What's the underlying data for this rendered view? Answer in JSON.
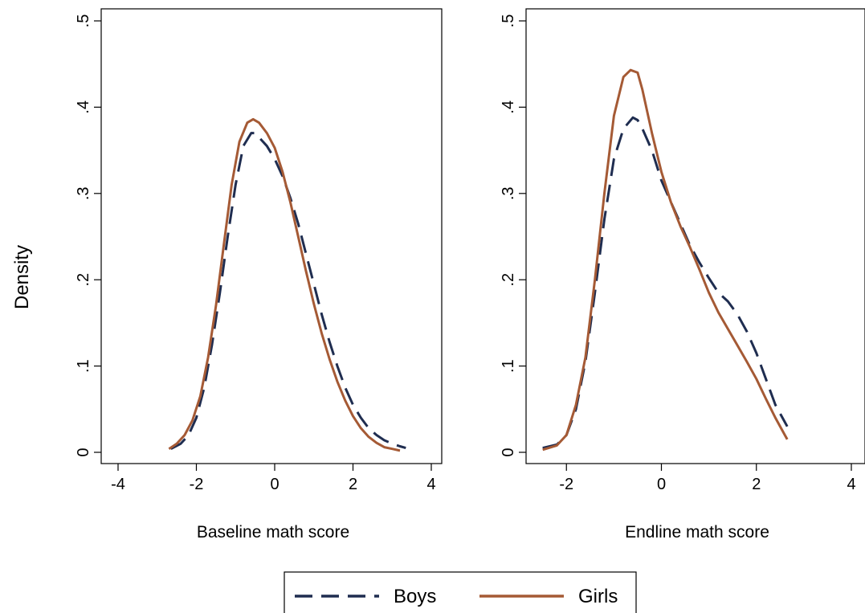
{
  "figure": {
    "ylabel": "Density",
    "legend": {
      "position": "bottom-center",
      "entries": [
        {
          "label": "Boys",
          "color": "#1f2d50",
          "dash": "dashed"
        },
        {
          "label": "Girls",
          "color": "#a55a35",
          "dash": "solid"
        }
      ]
    }
  },
  "chart_data": [
    {
      "type": "line",
      "title": "",
      "xlabel": "Baseline math score",
      "ylabel": "Density",
      "xlim": [
        -4,
        4
      ],
      "ylim": [
        0,
        0.5
      ],
      "xticks": [
        -4,
        -2,
        0,
        2,
        4
      ],
      "yticks": [
        0,
        0.1,
        0.2,
        0.3,
        0.4,
        0.5
      ],
      "ytick_labels": [
        "0",
        ".1",
        ".2",
        ".3",
        ".4",
        ".5"
      ],
      "grid": false,
      "series": [
        {
          "name": "Boys",
          "color": "#1f2d50",
          "dash": "dashed",
          "x": [
            -2.65,
            -2.4,
            -2.2,
            -2.0,
            -1.8,
            -1.6,
            -1.4,
            -1.2,
            -1.0,
            -0.8,
            -0.6,
            -0.5,
            -0.4,
            -0.2,
            0.0,
            0.2,
            0.4,
            0.6,
            0.8,
            1.0,
            1.2,
            1.4,
            1.6,
            1.8,
            2.0,
            2.2,
            2.4,
            2.6,
            2.8,
            3.0,
            3.2,
            3.35
          ],
          "y": [
            0.004,
            0.01,
            0.02,
            0.04,
            0.075,
            0.125,
            0.185,
            0.25,
            0.31,
            0.355,
            0.37,
            0.37,
            0.365,
            0.355,
            0.34,
            0.32,
            0.295,
            0.265,
            0.23,
            0.195,
            0.16,
            0.128,
            0.1,
            0.075,
            0.055,
            0.04,
            0.028,
            0.02,
            0.014,
            0.01,
            0.007,
            0.005
          ]
        },
        {
          "name": "Girls",
          "color": "#a55a35",
          "dash": "solid",
          "x": [
            -2.7,
            -2.5,
            -2.3,
            -2.1,
            -1.9,
            -1.7,
            -1.5,
            -1.3,
            -1.1,
            -0.9,
            -0.7,
            -0.55,
            -0.4,
            -0.2,
            0.0,
            0.2,
            0.4,
            0.6,
            0.8,
            1.0,
            1.2,
            1.4,
            1.6,
            1.8,
            2.0,
            2.2,
            2.4,
            2.6,
            2.8,
            3.0,
            3.2
          ],
          "y": [
            0.004,
            0.01,
            0.02,
            0.037,
            0.065,
            0.11,
            0.17,
            0.24,
            0.31,
            0.36,
            0.382,
            0.386,
            0.382,
            0.37,
            0.353,
            0.325,
            0.29,
            0.25,
            0.21,
            0.172,
            0.138,
            0.108,
            0.082,
            0.06,
            0.042,
            0.028,
            0.018,
            0.011,
            0.006,
            0.004,
            0.002
          ]
        }
      ]
    },
    {
      "type": "line",
      "title": "",
      "xlabel": "Endline math score",
      "ylabel": "Density",
      "xlim": [
        -4,
        4
      ],
      "ylim": [
        0,
        0.5
      ],
      "xticks": [
        -2,
        0,
        2,
        4
      ],
      "yticks": [
        0,
        0.1,
        0.2,
        0.3,
        0.4,
        0.5
      ],
      "ytick_labels": [
        "0",
        ".1",
        ".2",
        ".3",
        ".4",
        ".5"
      ],
      "grid": false,
      "series": [
        {
          "name": "Boys",
          "color": "#1f2d50",
          "dash": "dashed",
          "x": [
            -2.5,
            -2.2,
            -2.0,
            -1.8,
            -1.6,
            -1.4,
            -1.2,
            -1.0,
            -0.8,
            -0.6,
            -0.5,
            -0.4,
            -0.2,
            0.0,
            0.2,
            0.4,
            0.6,
            0.8,
            1.0,
            1.2,
            1.4,
            1.6,
            1.8,
            2.0,
            2.2,
            2.4,
            2.6,
            2.65
          ],
          "y": [
            0.005,
            0.009,
            0.02,
            0.05,
            0.105,
            0.185,
            0.27,
            0.34,
            0.375,
            0.388,
            0.385,
            0.375,
            0.35,
            0.315,
            0.29,
            0.265,
            0.24,
            0.22,
            0.202,
            0.185,
            0.175,
            0.16,
            0.14,
            0.115,
            0.085,
            0.055,
            0.035,
            0.03
          ]
        },
        {
          "name": "Girls",
          "color": "#a55a35",
          "dash": "solid",
          "x": [
            -2.5,
            -2.2,
            -2.0,
            -1.8,
            -1.6,
            -1.4,
            -1.2,
            -1.0,
            -0.8,
            -0.65,
            -0.5,
            -0.4,
            -0.2,
            0.0,
            0.2,
            0.4,
            0.6,
            0.8,
            1.0,
            1.2,
            1.4,
            1.6,
            1.8,
            2.0,
            2.2,
            2.4,
            2.6,
            2.65
          ],
          "y": [
            0.003,
            0.008,
            0.02,
            0.055,
            0.11,
            0.2,
            0.3,
            0.39,
            0.435,
            0.443,
            0.44,
            0.42,
            0.37,
            0.325,
            0.29,
            0.262,
            0.238,
            0.212,
            0.185,
            0.162,
            0.143,
            0.124,
            0.105,
            0.085,
            0.062,
            0.04,
            0.02,
            0.015
          ]
        }
      ]
    }
  ]
}
